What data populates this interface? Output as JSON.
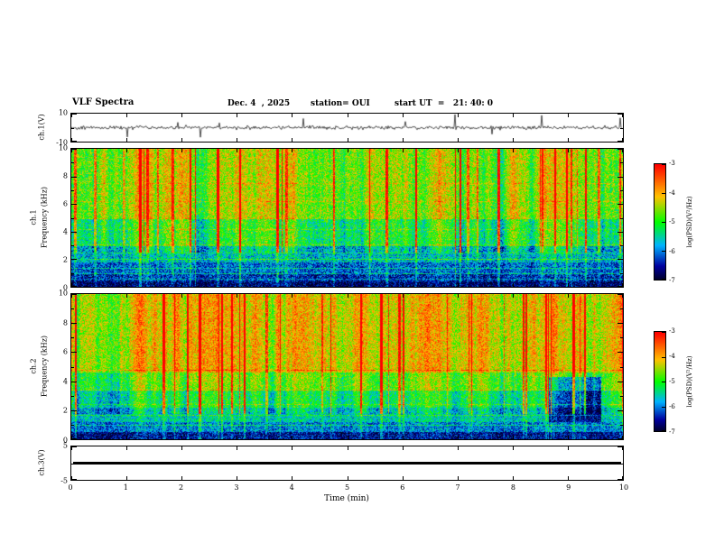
{
  "figure": {
    "background": "#ffffff",
    "frame_color": "#000000"
  },
  "header": {
    "title": "VLF Spectra",
    "date": "Dec. 4  , 2025",
    "station": "station= OUI",
    "start_ut": "start UT  =   21: 40: 0"
  },
  "xaxis": {
    "label": "Time (min)",
    "ticks": [
      0,
      1,
      2,
      3,
      4,
      5,
      6,
      7,
      8,
      9,
      10
    ],
    "range": [
      0,
      10
    ]
  },
  "panels": {
    "ch1_wave": {
      "ylabel": "ch.1(V)",
      "ylim": [
        -10,
        10
      ],
      "ytick_labels": [
        10,
        -10
      ]
    },
    "ch1_spec": {
      "ylabel_line1": "ch.1",
      "ylabel_line2": "Frequency (kHz)",
      "ylim": [
        0,
        10
      ],
      "ytick_labels": [
        10,
        8,
        6,
        4,
        2,
        0
      ]
    },
    "ch2_spec": {
      "ylabel_line1": "ch.2",
      "ylabel_line2": "Frequency (kHz)",
      "ylim": [
        0,
        10
      ],
      "ytick_labels": [
        10,
        8,
        6,
        4,
        2,
        0
      ]
    },
    "ch3_wave": {
      "ylabel": "ch.3(V)",
      "ylim": [
        -5,
        5
      ],
      "ytick_labels": [
        5,
        -5
      ],
      "signal": "constant 0 V (flat heavy line)"
    }
  },
  "colorbars": [
    {
      "label": "log(PSD)(V²/Hz)",
      "tick_labels": [
        -3,
        -4,
        -5,
        -6,
        -7
      ],
      "value_range": [
        -7,
        -3
      ]
    },
    {
      "label": "log(PSD)(V²/Hz)",
      "tick_labels": [
        -3,
        -4,
        -5,
        -6,
        -7
      ],
      "value_range": [
        -7,
        -3
      ]
    }
  ],
  "chart_data": [
    {
      "type": "line",
      "name": "ch1_waveform",
      "xlabel": "Time (min)",
      "x_range": [
        0,
        10
      ],
      "ylabel": "ch.1(V)",
      "ylim": [
        -10,
        10
      ],
      "summary": "broadband noise centred on 0 V with frequent impulsive spikes reaching roughly ±9 V throughout the 10-minute record",
      "render": {
        "seed": 42,
        "noise_v": 1.3,
        "spike_prob": 0.02,
        "spike_v": 9
      }
    },
    {
      "type": "heatmap",
      "name": "ch1_spectrogram",
      "xlabel": "Time (min)",
      "x_range": [
        0,
        10
      ],
      "ylabel": "Frequency (kHz)",
      "ylim": [
        0,
        10
      ],
      "value_label": "log(PSD)(V²/Hz)",
      "value_range": [
        -7,
        -3
      ],
      "bands_mean_psd": [
        {
          "freq_khz": [
            0,
            1
          ],
          "log_psd": -6.8
        },
        {
          "freq_khz": [
            1,
            3
          ],
          "log_psd": -6.1
        },
        {
          "freq_khz": [
            3,
            5
          ],
          "log_psd": -5.2
        },
        {
          "freq_khz": [
            5,
            10
          ],
          "log_psd": -4.4
        }
      ],
      "features": [
        "dense vertical impulsive streaks reaching -3 (red) mostly above 2.5 kHz",
        "dark (-7) band below 1 kHz",
        "horizontal narrowband lines near 0.6, 1.0, 1.4, 2.0, 2.5, 3.1, 5.0 kHz"
      ],
      "render": {
        "seed": 7,
        "noise": 0.32,
        "streak_prob": 0.07,
        "streak_fmin": 2.5,
        "bands": [
          [
            0.4,
            0.06
          ],
          [
            1.0,
            0.15
          ],
          [
            1.8,
            0.22
          ],
          [
            3.0,
            0.32
          ],
          [
            5.0,
            0.46
          ],
          [
            10.1,
            0.6
          ]
        ],
        "lines": [
          [
            0.6,
            0.12
          ],
          [
            1.0,
            0.2
          ],
          [
            1.4,
            0.14
          ],
          [
            2.0,
            0.18
          ],
          [
            2.5,
            0.12
          ],
          [
            3.1,
            0.12
          ],
          [
            4.2,
            0.1
          ],
          [
            5.0,
            0.18
          ],
          [
            6.2,
            0.08
          ],
          [
            7.5,
            0.08
          ]
        ],
        "cool_block": null
      }
    },
    {
      "type": "heatmap",
      "name": "ch2_spectrogram",
      "xlabel": "Time (min)",
      "x_range": [
        0,
        10
      ],
      "ylabel": "Frequency (kHz)",
      "ylim": [
        0,
        10
      ],
      "value_label": "log(PSD)(V²/Hz)",
      "value_range": [
        -7,
        -3
      ],
      "bands_mean_psd": [
        {
          "freq_khz": [
            0,
            1
          ],
          "log_psd": -6.6
        },
        {
          "freq_khz": [
            1,
            3
          ],
          "log_psd": -5.6
        },
        {
          "freq_khz": [
            3,
            4.5
          ],
          "log_psd": -4.8
        },
        {
          "freq_khz": [
            4.5,
            10
          ],
          "log_psd": -3.8
        }
      ],
      "features": [
        "upper half (above ~4.5 kHz) nearly saturated orange/red around -3.5 with dense red streaks",
        "green/cyan mid band 1.5-4 kHz, dark blue below 1 kHz",
        "cooler blue/cyan patch near 8.7-9.6 min between ~1.5 and 4.3 kHz",
        "horizontal narrowband lines near 1.0, 1.7, 2.4, 3.4, 4.8 kHz"
      ],
      "render": {
        "seed": 13,
        "noise": 0.3,
        "streak_prob": 0.06,
        "streak_fmin": 1.8,
        "bands": [
          [
            0.5,
            0.12
          ],
          [
            1.2,
            0.26
          ],
          [
            2.2,
            0.36
          ],
          [
            3.4,
            0.46
          ],
          [
            4.6,
            0.58
          ],
          [
            10.1,
            0.72
          ]
        ],
        "lines": [
          [
            1.0,
            0.16
          ],
          [
            1.7,
            0.14
          ],
          [
            2.4,
            0.12
          ],
          [
            3.4,
            0.1
          ],
          [
            4.8,
            0.14
          ]
        ],
        "cool_block": [
          0.865,
          0.96,
          1.2,
          4.3,
          -0.25
        ]
      }
    },
    {
      "type": "line",
      "name": "ch3_waveform",
      "xlabel": "Time (min)",
      "x_range": [
        0,
        10
      ],
      "ylabel": "ch.3(V)",
      "ylim": [
        -5,
        5
      ],
      "summary": "flat heavy black line at approximately 0 V for the entire interval"
    }
  ]
}
